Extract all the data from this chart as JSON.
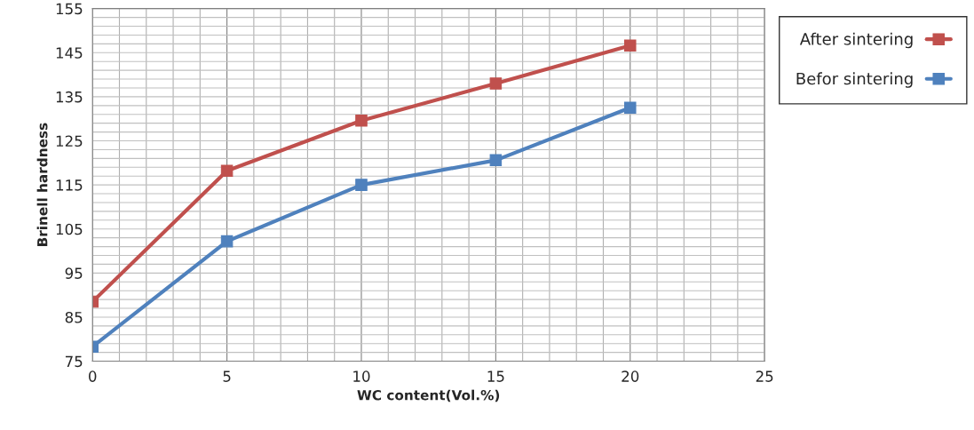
{
  "chart_data": {
    "type": "line",
    "xlabel": "WC content(Vol.%)",
    "ylabel": "Brinell hardness",
    "x": [
      0,
      5,
      10,
      15,
      20
    ],
    "series": [
      {
        "name": "After sintering",
        "color": "#c0504d",
        "values": [
          88.5,
          118.2,
          129.6,
          138,
          146.6
        ]
      },
      {
        "name": "Befor sintering",
        "color": "#4f81bd",
        "values": [
          78.3,
          102.2,
          115,
          120.6,
          132.5
        ]
      }
    ],
    "xlim": [
      0,
      25
    ],
    "xticks": [
      0,
      5,
      10,
      15,
      20,
      25
    ],
    "ylim": [
      75,
      155
    ],
    "yticks": [
      75,
      85,
      95,
      105,
      115,
      125,
      135,
      145,
      155
    ],
    "grid": true,
    "legend": "top right",
    "marker": "square",
    "line_style": "solid"
  }
}
